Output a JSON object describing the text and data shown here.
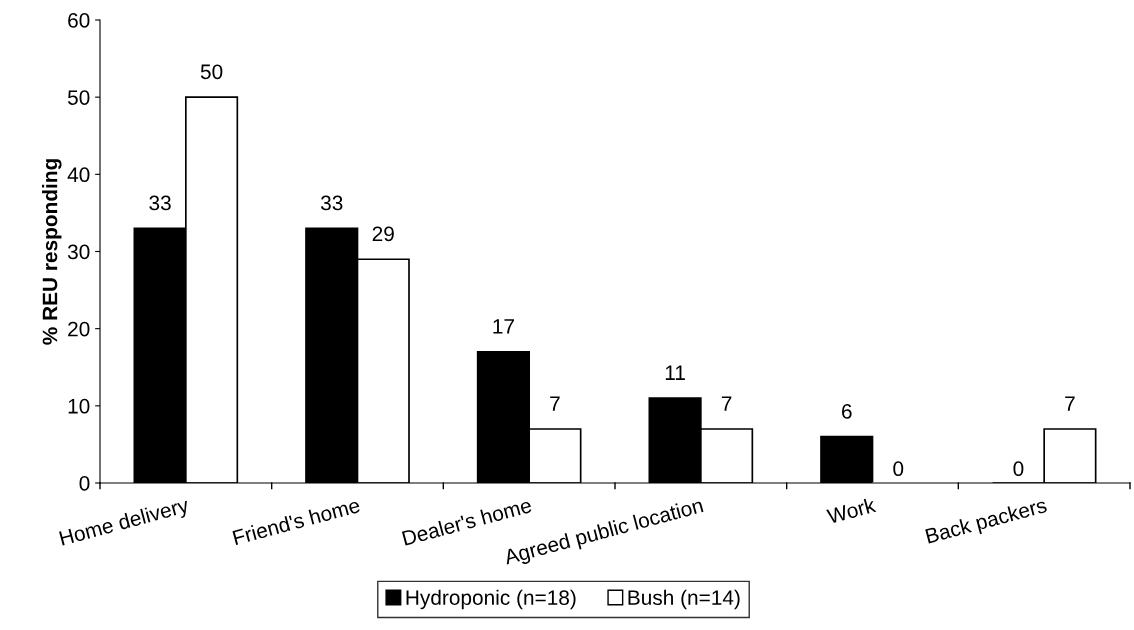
{
  "chart_data": {
    "type": "bar",
    "ylabel": "% REU responding",
    "categories": [
      "Home delivery",
      "Friend's home",
      "Dealer's home",
      "Agreed public location",
      "Work",
      "Back packers"
    ],
    "series": [
      {
        "name": "Hydroponic (n=18)",
        "color": "#000000",
        "values": [
          33,
          33,
          17,
          11,
          6,
          0
        ]
      },
      {
        "name": "Bush (n=14)",
        "color": "#ffffff",
        "values": [
          50,
          29,
          7,
          7,
          0,
          7
        ]
      }
    ],
    "ylim": [
      0,
      60
    ],
    "yticks": [
      0,
      10,
      20,
      30,
      40,
      50,
      60
    ],
    "grid": false,
    "legend": "bottom",
    "data_labels": true
  }
}
